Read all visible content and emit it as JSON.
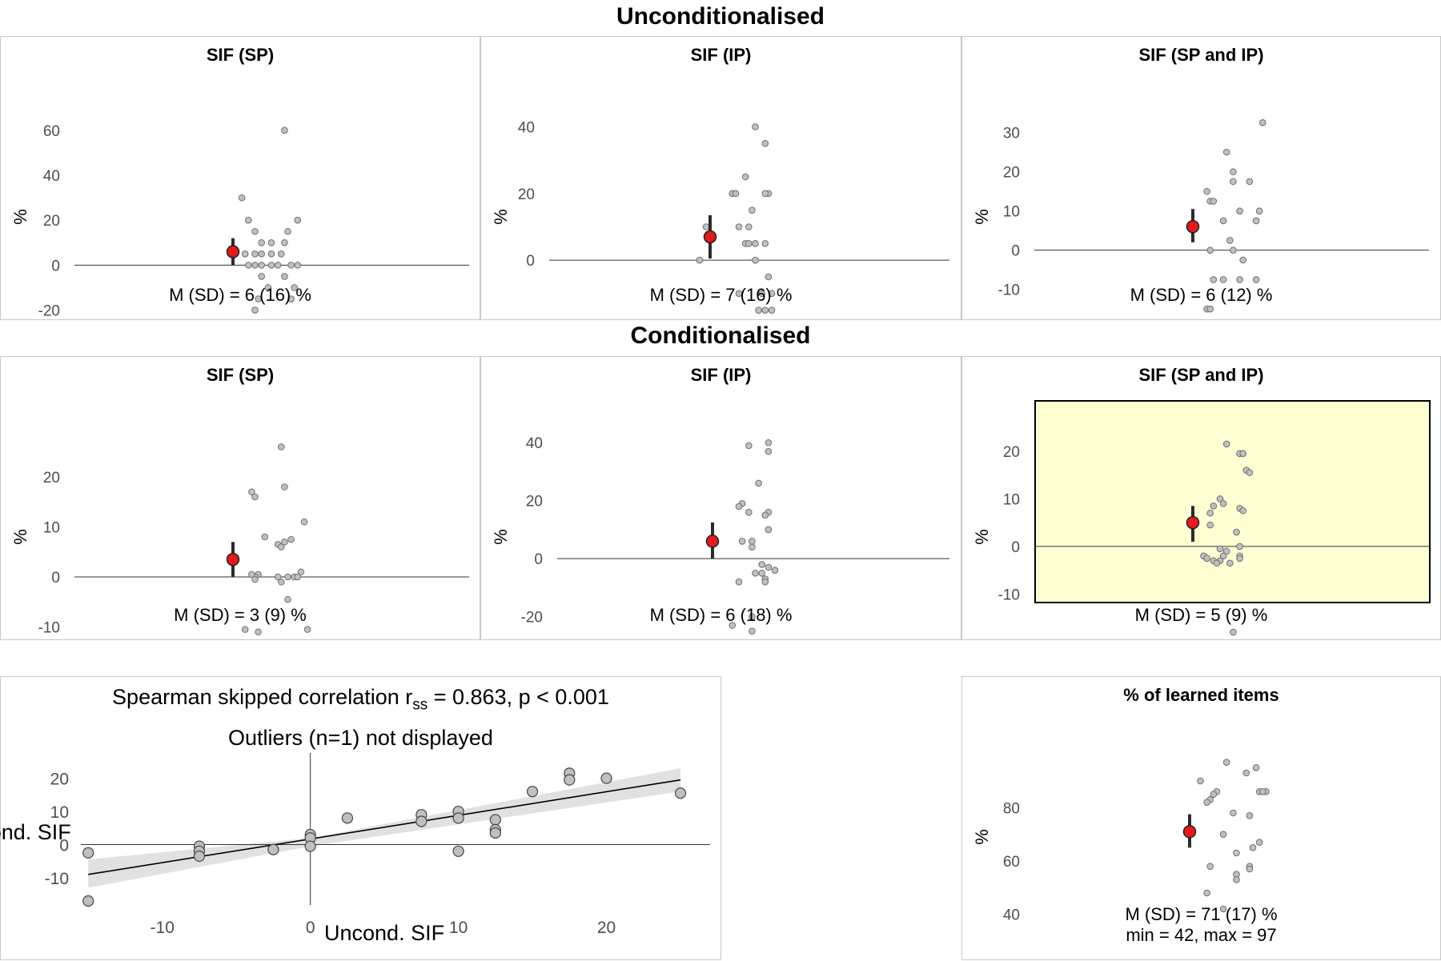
{
  "sections": {
    "uncond_title": "Unconditionalised",
    "cond_title": "Conditionalised"
  },
  "colors": {
    "point": "#c0c0c0",
    "mean": "#e41a1c",
    "highlight_bg": "#ffffd4",
    "ci_band": "#d9d9d9"
  },
  "chart_data": [
    {
      "type": "scatter",
      "title": "SIF (SP)",
      "ylabel": "%",
      "caption": "M (SD) = 6 (16) %",
      "ylim": [
        -23,
        66
      ],
      "yticks": [
        60,
        40,
        20,
        0,
        -20
      ],
      "zero_line": true,
      "mean": 6,
      "ci": [
        0,
        12
      ],
      "x": [
        0.04,
        -0.09,
        -0.07,
        0.08,
        -0.05,
        0.05,
        -0.03,
        0.0,
        0.04,
        -0.08,
        -0.05,
        -0.03,
        0.0,
        0.03,
        0.08,
        -0.07,
        -0.05,
        -0.03,
        0.0,
        0.02,
        0.06,
        -0.03,
        0.04,
        -0.01,
        0.07,
        -0.04,
        0.06,
        -0.05
      ],
      "y": [
        60,
        30,
        20,
        20,
        15,
        15,
        10,
        10,
        10,
        5,
        5,
        5,
        5,
        5,
        0,
        0,
        0,
        0,
        0,
        0,
        0,
        -5,
        -5,
        -10,
        -10,
        -15,
        -15,
        -20
      ]
    },
    {
      "type": "scatter",
      "title": "SIF (IP)",
      "ylabel": "%",
      "caption": "M (SD) = 7 (16) %",
      "ylim": [
        -17,
        43
      ],
      "yticks": [
        40,
        20,
        0
      ],
      "zero_line": true,
      "mean": 7,
      "ci": [
        0.5,
        13.5
      ],
      "x": [
        0.05,
        0.08,
        0.02,
        -0.02,
        -0.01,
        0.09,
        0.08,
        0.04,
        -0.1,
        0.0,
        0.03,
        0.05,
        0.08,
        0.02,
        0.03,
        0.05,
        -0.12,
        0.09,
        0.0,
        0.07,
        0.1,
        0.06,
        0.08,
        0.1
      ],
      "y": [
        40,
        35,
        25,
        20,
        20,
        20,
        20,
        15,
        10,
        10,
        10,
        5,
        5,
        5,
        5,
        0,
        0,
        -5,
        -10,
        -10,
        -10,
        -15,
        -15,
        -15
      ]
    },
    {
      "type": "scatter",
      "title": "SIF (SP and IP)",
      "ylabel": "%",
      "caption": "M (SD) = 6 (12) %",
      "ylim": [
        -17,
        34
      ],
      "yticks": [
        30,
        20,
        10,
        0,
        -10
      ],
      "zero_line": true,
      "mean": 6,
      "ci": [
        2,
        10.5
      ],
      "x": [
        0.13,
        0.02,
        0.04,
        0.09,
        0.04,
        -0.04,
        -0.03,
        -0.02,
        0.12,
        0.06,
        0.11,
        0.01,
        0.03,
        -0.03,
        0.04,
        0.07,
        0.11,
        -0.02,
        0.01,
        0.06,
        -0.04,
        -0.03
      ],
      "y": [
        32.5,
        25,
        20,
        17.5,
        17.5,
        15,
        12.5,
        12.5,
        10,
        10,
        7.5,
        7.5,
        2.5,
        0,
        0,
        -2.5,
        -7.5,
        -7.5,
        -7.5,
        -7.5,
        -15,
        -15
      ]
    },
    {
      "type": "scatter",
      "title": "SIF (SP)",
      "ylabel": "%",
      "caption": "M (SD) = 3 (9) %",
      "ylim": [
        -12,
        28
      ],
      "yticks": [
        20,
        10,
        0,
        -10
      ],
      "zero_line": true,
      "mean": 3.5,
      "ci": [
        0,
        7
      ],
      "x": [
        0.03,
        0.04,
        -0.06,
        -0.05,
        0.1,
        -0.02,
        0.06,
        0.04,
        0.02,
        0.03,
        -0.04,
        -0.05,
        -0.06,
        0.05,
        0.02,
        0.09,
        0.07,
        0.08,
        0.03,
        -0.05,
        0.05,
        -0.08,
        -0.04,
        0.11
      ],
      "y": [
        26,
        18,
        17,
        16,
        11,
        8,
        7.5,
        7,
        6.5,
        6,
        0.5,
        0,
        0.5,
        0,
        0,
        1,
        0,
        0,
        -1,
        -0.5,
        -4.5,
        -10.5,
        -11,
        -10.5
      ]
    },
    {
      "type": "scatter",
      "title": "SIF (IP)",
      "ylabel": "%",
      "caption": "M (SD) = 6 (18) %",
      "ylim": [
        -27,
        42
      ],
      "yticks": [
        40,
        20,
        0,
        -20
      ],
      "zero_line": true,
      "mean": 6,
      "ci": [
        0,
        12.5
      ],
      "x": [
        0.09,
        0.03,
        0.09,
        0.06,
        0.09,
        0.01,
        0.0,
        0.03,
        0.08,
        0.09,
        0.01,
        0.04,
        0.04,
        0.07,
        0.09,
        0.11,
        0.05,
        0.07,
        0.08,
        0.0,
        0.08,
        0.04,
        -0.02,
        0.04
      ],
      "y": [
        40,
        39,
        37,
        26,
        16,
        19,
        18,
        16,
        15,
        10,
        6,
        4,
        6,
        -2,
        -3,
        -4,
        -5,
        -5,
        -7,
        -8,
        -8,
        -20,
        -23,
        -25
      ]
    },
    {
      "type": "scatter",
      "title": "SIF (SP and IP)",
      "ylabel": "%",
      "caption": "M (SD) = 5 (9) %",
      "highlight": true,
      "ylim": [
        -19,
        23
      ],
      "yticks": [
        20,
        10,
        0,
        -10
      ],
      "zero_line": true,
      "mean": 5,
      "ci": [
        1,
        8.5
      ],
      "x": [
        0.02,
        0.06,
        0.07,
        0.08,
        0.09,
        0.0,
        0.01,
        0.06,
        0.07,
        -0.02,
        -0.03,
        0.05,
        -0.03,
        0.06,
        0.0,
        0.02,
        0.06,
        -0.02,
        0.01,
        0.06,
        0.0,
        0.03,
        -0.01,
        -0.05,
        -0.04,
        0.04
      ],
      "y": [
        21.5,
        19.5,
        19.5,
        16,
        15.5,
        10,
        9,
        8,
        7.5,
        8.5,
        7,
        3,
        4.5,
        0,
        -0.5,
        -1,
        -2,
        -3,
        -2,
        -2.5,
        -3,
        -3.5,
        -3.5,
        -2,
        -2.5,
        -18
      ]
    },
    {
      "type": "scatter",
      "title": "Spearman skipped correlation r",
      "title_sub": "ss",
      "title_rest": " = 0.863, p < 0.001",
      "subtitle": "Outliers (n=1) not displayed",
      "xlabel": "Uncond. SIF",
      "ylabel": "Cond. SIF",
      "xlim": [
        -15.5,
        27
      ],
      "ylim": [
        -17,
        24
      ],
      "xticks": [
        -10,
        0,
        10,
        20
      ],
      "yticks": [
        20,
        10,
        0,
        -10
      ],
      "fit": {
        "x": [
          -15,
          25
        ],
        "y": [
          -9,
          19.5
        ]
      },
      "band": {
        "x": [
          -15,
          0,
          25
        ],
        "upper": [
          -4.5,
          2,
          23
        ],
        "lower": [
          -13,
          -0.5,
          16
        ]
      },
      "x": [
        -15,
        -15,
        -7.5,
        -7.5,
        -7.5,
        -2.5,
        0,
        0,
        0,
        2.5,
        7.5,
        7.5,
        10,
        10,
        10,
        12.5,
        12.5,
        12.5,
        15,
        17.5,
        17.5,
        20,
        25
      ],
      "y": [
        -2.5,
        -17,
        -0.5,
        -2,
        -3.5,
        -1.5,
        3,
        2,
        -0.5,
        8,
        9,
        7,
        10,
        8,
        -2,
        7.5,
        4.5,
        3.5,
        16,
        21.5,
        19.5,
        20,
        15.5
      ]
    },
    {
      "type": "scatter",
      "title": "% of learned items",
      "ylabel": "%",
      "caption": "M (SD) = 71 (17) %",
      "caption2": "min = 42, max = 97",
      "ylim": [
        39,
        99
      ],
      "yticks": [
        80,
        60,
        40
      ],
      "mean": 71,
      "ci": [
        65,
        77.5
      ],
      "x": [
        0.02,
        0.11,
        0.08,
        -0.06,
        -0.01,
        0.12,
        -0.02,
        -0.03,
        0.14,
        0.13,
        -0.04,
        0.04,
        0.09,
        0.01,
        0.12,
        0.1,
        0.05,
        0.09,
        -0.03,
        0.09,
        0.05,
        0.05,
        -0.04,
        0.01
      ],
      "y": [
        97,
        95,
        93,
        90,
        86,
        86,
        85,
        83,
        86,
        86,
        82,
        78,
        77,
        70,
        67,
        65,
        63,
        58,
        58,
        57,
        55,
        53,
        48,
        42
      ]
    }
  ]
}
